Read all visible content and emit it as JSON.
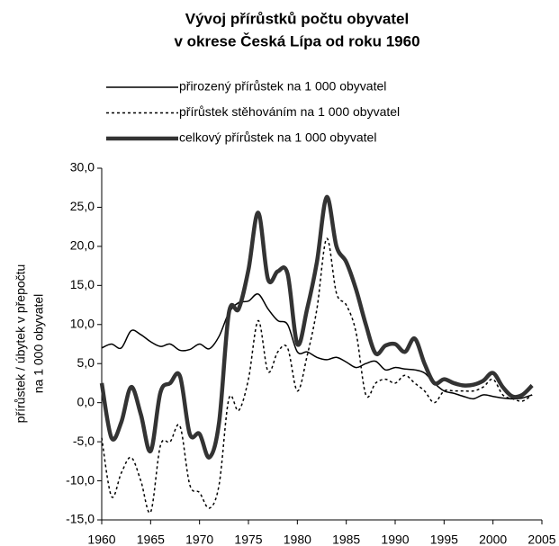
{
  "chart_data": {
    "type": "line",
    "title": [
      "Vývoj přírůstků počtu obyvatel",
      "v okrese Česká Lípa od roku 1960"
    ],
    "y_label": [
      "přírůstek / úbytek v přepočtu",
      "na 1 000 obyvatel"
    ],
    "x": [
      1960,
      1961,
      1962,
      1963,
      1964,
      1965,
      1966,
      1967,
      1968,
      1969,
      1970,
      1971,
      1972,
      1973,
      1974,
      1975,
      1976,
      1977,
      1978,
      1979,
      1980,
      1981,
      1982,
      1983,
      1984,
      1985,
      1986,
      1987,
      1988,
      1989,
      1990,
      1991,
      1992,
      1993,
      1994,
      1995,
      1996,
      1997,
      1998,
      1999,
      2000,
      2001,
      2002,
      2003,
      2004
    ],
    "series": [
      {
        "name": "přirozený přírůstek na 1 000 obyvatel",
        "color": "#000000",
        "style": "thin",
        "values": [
          7,
          7.5,
          7,
          9.2,
          8.7,
          7.8,
          7.2,
          7.5,
          6.7,
          6.8,
          7.5,
          6.9,
          8.5,
          11.5,
          12.8,
          13,
          13.9,
          12,
          10.5,
          10,
          6.5,
          6.5,
          5.8,
          5.5,
          5.8,
          5.2,
          4.5,
          5,
          5.3,
          4.2,
          4.5,
          4.3,
          4.2,
          3.8,
          2.5,
          1.5,
          1.2,
          0.8,
          0.5,
          1,
          0.8,
          0.6,
          0.5,
          0.6,
          1
        ]
      },
      {
        "name": "přírůstek stěhováním na 1 000 obyvatel",
        "color": "#000000",
        "style": "dotted",
        "values": [
          -4.5,
          -12,
          -9,
          -7,
          -10,
          -14,
          -5.5,
          -5,
          -3,
          -10.5,
          -11.5,
          -13.5,
          -10.5,
          0.5,
          -1,
          3,
          10.5,
          4,
          6.5,
          7,
          1.5,
          6,
          12,
          21,
          14,
          12.5,
          9,
          1,
          2.5,
          3,
          2.5,
          3.5,
          2.5,
          1.5,
          0,
          1.5,
          1.5,
          1.5,
          1.5,
          2,
          3,
          1,
          0.5,
          0.2,
          1
        ]
      },
      {
        "name": "celkový přírůstek na 1 000 obyvatel",
        "color": "#333333",
        "style": "thick",
        "values": [
          2.5,
          -4.5,
          -2.5,
          2,
          -1.5,
          -6.2,
          1.3,
          2.5,
          3.4,
          -4,
          -4,
          -7,
          -2.5,
          11.5,
          12,
          17,
          24.3,
          15.8,
          16.8,
          16.5,
          7.5,
          12,
          18,
          26.3,
          20,
          18,
          14.5,
          10,
          6.3,
          7.3,
          7.5,
          6.5,
          8.2,
          5,
          2.5,
          3,
          2.5,
          2.2,
          2.3,
          2.8,
          3.8,
          2,
          0.8,
          1,
          2.2
        ]
      }
    ],
    "xlim": [
      1960,
      2005
    ],
    "xticks": [
      1960,
      1965,
      1970,
      1975,
      1980,
      1985,
      1990,
      1995,
      2000,
      2005
    ],
    "ylim": [
      -15,
      30
    ],
    "yticks": [
      {
        "value": -15,
        "label": "-15,0"
      },
      {
        "value": -10,
        "label": "-10,0"
      },
      {
        "value": -5,
        "label": "-5,0"
      },
      {
        "value": 0,
        "label": "0,0"
      },
      {
        "value": 5,
        "label": "5,0"
      },
      {
        "value": 10,
        "label": "10,0"
      },
      {
        "value": 15,
        "label": "15,0"
      },
      {
        "value": 20,
        "label": "20,0"
      },
      {
        "value": 25,
        "label": "25,0"
      },
      {
        "value": 30,
        "label": "30,0"
      }
    ],
    "grid": false,
    "legend": "top"
  }
}
